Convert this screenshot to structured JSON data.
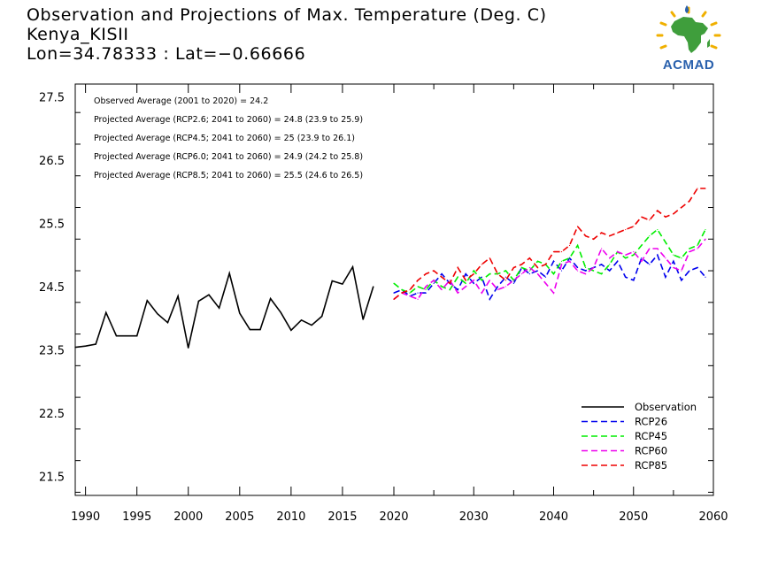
{
  "header": {
    "title_lines": [
      "Observation and Projections of Max. Temperature (Deg. C)",
      "Kenya_KISII",
      "Lon=34.78333 : Lat=−0.66666"
    ],
    "logo_text": "ACMAD"
  },
  "colors": {
    "Observation": "#000000",
    "RCP26": "#0000ee",
    "RCP45": "#00ee00",
    "RCP60": "#ee00ee",
    "RCP85": "#ee0000",
    "logo_blue": "#2a61ad",
    "logo_green": "#3f9e3c",
    "logo_yellow": "#f0b000"
  },
  "chart_data": {
    "type": "line",
    "title": "Observation and Projections of Max. Temperature (Deg. C)",
    "xlim": [
      1989,
      2060
    ],
    "ylim": [
      21.2,
      27.7
    ],
    "x_ticks": [
      1990,
      1995,
      2000,
      2005,
      2010,
      2015,
      2020,
      2030,
      2040,
      2050,
      2060
    ],
    "y_ticks": [
      21.5,
      22.5,
      23.5,
      24.5,
      25.5,
      26.5,
      27.5
    ],
    "y_tick_labels": [
      "21.5",
      "22.5",
      "23.5",
      "24.5",
      "25.5",
      "26.5",
      "27.5"
    ],
    "grid": false,
    "legend_position": "bottom-right",
    "annotations": [
      "Observed Average (2001 to 2020) = 24.2",
      "Projected Average (RCP2.6; 2041 to 2060) = 24.8 (23.9 to 25.9)",
      "Projected Average (RCP4.5; 2041 to 2060) = 25 (23.9 to 26.1)",
      "Projected Average (RCP6.0; 2041 to 2060) = 24.9 (24.2 to 25.8)",
      "Projected Average (RCP8.5; 2041 to 2060) = 25.5 (24.6 to 26.5)"
    ],
    "series": [
      {
        "name": "Observation",
        "dashed": false,
        "start_year": 1989,
        "values": [
          23.54,
          23.56,
          23.59,
          24.09,
          23.72,
          23.72,
          23.72,
          24.28,
          24.07,
          23.93,
          24.35,
          23.53,
          24.27,
          24.37,
          24.16,
          24.71,
          24.08,
          23.82,
          23.82,
          24.31,
          24.09,
          23.81,
          23.97,
          23.89,
          24.03,
          24.59,
          24.54,
          24.81,
          23.98,
          24.5
        ]
      },
      {
        "name": "RCP26",
        "dashed": true,
        "start_year": 2020,
        "values": [
          24.4,
          24.45,
          24.35,
          24.4,
          24.4,
          24.55,
          24.7,
          24.55,
          24.45,
          24.7,
          24.55,
          24.65,
          24.3,
          24.5,
          24.65,
          24.55,
          24.8,
          24.7,
          24.75,
          24.65,
          24.9,
          24.75,
          24.95,
          24.8,
          24.75,
          24.8,
          24.85,
          24.75,
          24.9,
          24.65,
          24.6,
          24.95,
          24.85,
          25.0,
          24.65,
          24.9,
          24.6,
          24.75,
          24.8,
          24.65
        ]
      },
      {
        "name": "RCP45",
        "dashed": true,
        "start_year": 2020,
        "values": [
          24.55,
          24.45,
          24.4,
          24.5,
          24.45,
          24.6,
          24.5,
          24.45,
          24.65,
          24.55,
          24.75,
          24.6,
          24.7,
          24.7,
          24.75,
          24.6,
          24.8,
          24.75,
          24.9,
          24.85,
          24.7,
          24.9,
          24.95,
          25.15,
          24.8,
          24.75,
          24.7,
          24.85,
          25.05,
          24.95,
          25.0,
          25.15,
          25.3,
          25.4,
          25.2,
          25.0,
          24.95,
          25.1,
          25.15,
          25.4
        ]
      },
      {
        "name": "RCP60",
        "dashed": true,
        "start_year": 2020,
        "values": [
          24.3,
          24.4,
          24.35,
          24.3,
          24.5,
          24.6,
          24.45,
          24.6,
          24.4,
          24.5,
          24.6,
          24.4,
          24.6,
          24.45,
          24.5,
          24.6,
          24.7,
          24.8,
          24.7,
          24.55,
          24.4,
          24.85,
          24.9,
          24.75,
          24.7,
          24.8,
          25.1,
          24.95,
          25.05,
          25.0,
          25.05,
          24.9,
          25.1,
          25.1,
          24.95,
          24.8,
          24.75,
          25.05,
          25.1,
          25.25
        ]
      },
      {
        "name": "RCP85",
        "dashed": true,
        "start_year": 2020,
        "values": [
          24.3,
          24.4,
          24.45,
          24.6,
          24.7,
          24.75,
          24.65,
          24.55,
          24.8,
          24.6,
          24.7,
          24.85,
          24.95,
          24.7,
          24.6,
          24.8,
          24.85,
          24.95,
          24.8,
          24.85,
          25.05,
          25.05,
          25.15,
          25.45,
          25.3,
          25.25,
          25.35,
          25.3,
          25.35,
          25.4,
          25.45,
          25.6,
          25.55,
          25.7,
          25.6,
          25.65,
          25.75,
          25.85,
          26.05,
          26.05
        ]
      }
    ]
  }
}
